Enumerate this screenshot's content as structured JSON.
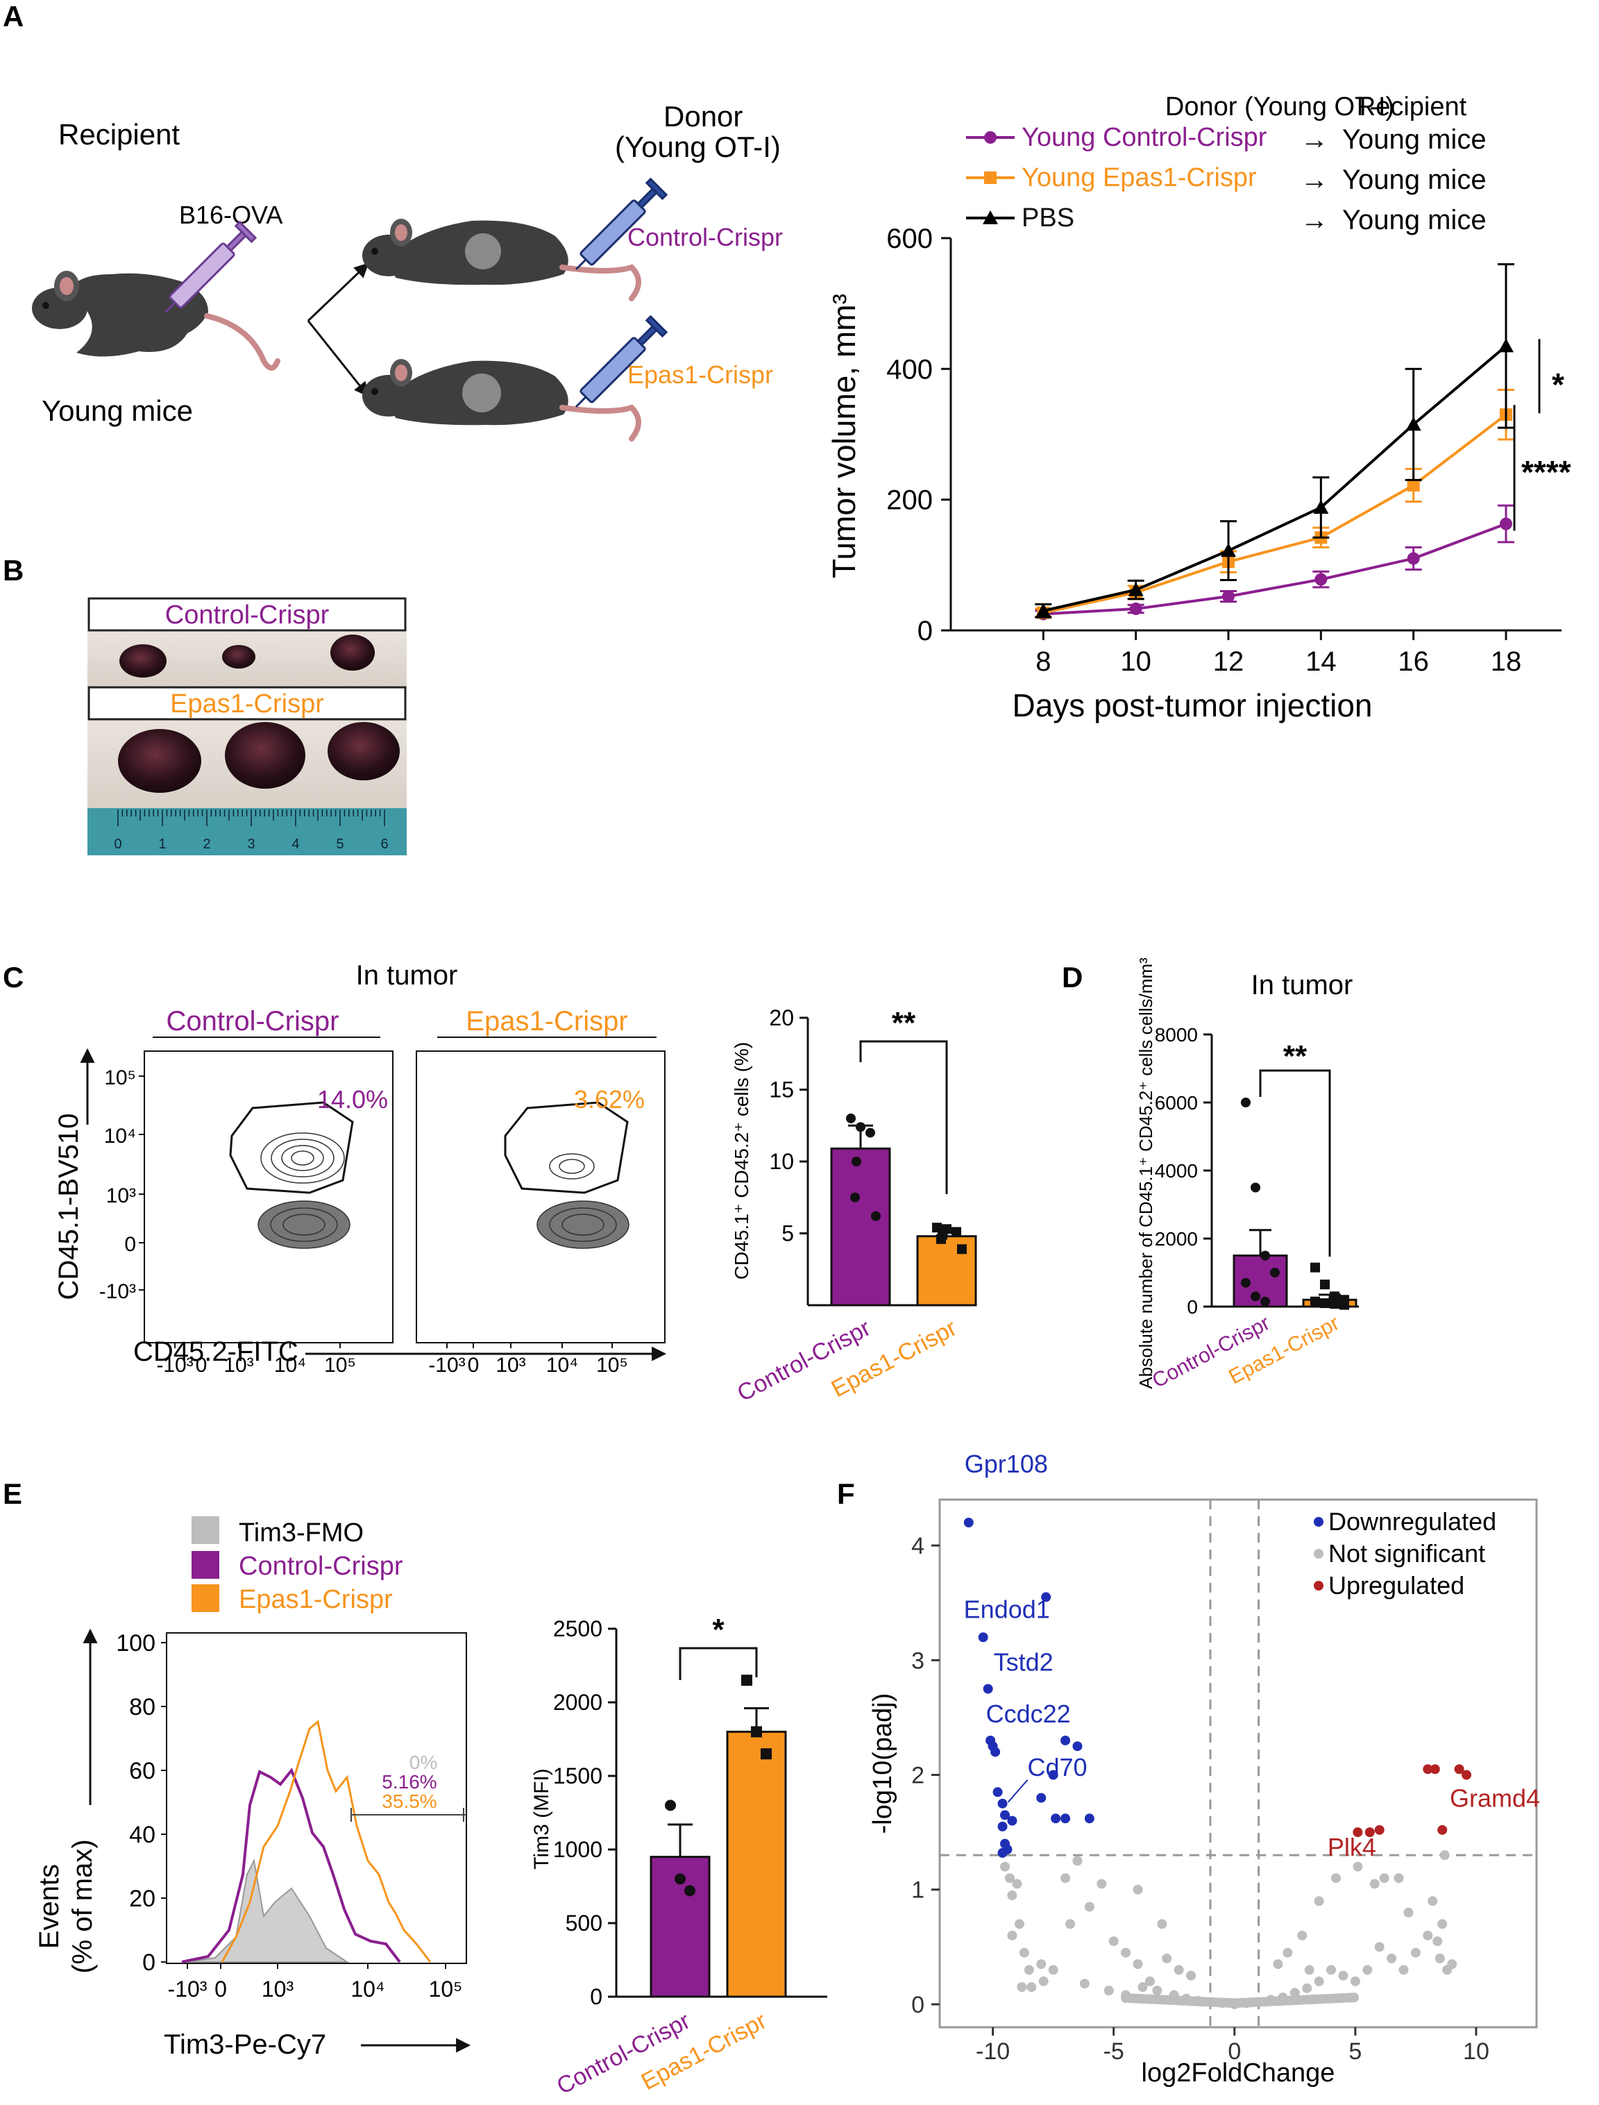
{
  "colors": {
    "control": "#8B1F8F",
    "epas1": "#F7941D",
    "pbs": "#000000",
    "fmo": "#BDBDBD",
    "down": "#1F2FB5",
    "up": "#B22222",
    "ns": "#BDBDBD"
  },
  "panels": {
    "A": "A",
    "B": "B",
    "C": "C",
    "D": "D",
    "E": "E",
    "F": "F"
  },
  "schematic": {
    "recipient": "Recipient",
    "young_mice": "Young mice",
    "tumor_cells": "B16-OVA",
    "donor_line1": "Donor",
    "donor_line2": "(Young OT-I)",
    "control": "Control-Crispr",
    "epas1": "Epas1-Crispr"
  },
  "photo": {
    "control_label": "Control-Crispr",
    "epas1_label": "Epas1-Crispr",
    "ruler_ticks": [
      "0",
      "1",
      "2",
      "3",
      "4",
      "5",
      "6"
    ]
  },
  "flow_c": {
    "title": "In tumor",
    "control": "Control-Crispr",
    "epas1": "Epas1-Crispr",
    "control_pct": "14.0%",
    "epas1_pct": "3.62%",
    "ylabel": "CD45.1-BV510",
    "xlabel": "CD45.2-FITC",
    "y_ticks": [
      "10⁵",
      "10⁴",
      "10³",
      "0",
      "-10³"
    ],
    "x_ticks": [
      "-10³",
      "0",
      "10³",
      "10⁴",
      "10⁵"
    ]
  },
  "flow_e": {
    "legend": [
      "Tim3-FMO",
      "Control-Crispr",
      "Epas1-Crispr"
    ],
    "ylabel1": "Events",
    "ylabel2": "(% of max)",
    "xlabel": "Tim3-Pe-Cy7",
    "gate_pcts": [
      "0%",
      "5.16%",
      "35.5%"
    ],
    "y_ticks": [
      "100",
      "80",
      "60",
      "40",
      "20",
      "0"
    ],
    "x_ticks": [
      "-10³",
      "0",
      "10³",
      "10⁴",
      "10⁵"
    ]
  },
  "chart_data": [
    {
      "panel": "A",
      "type": "line",
      "title": "",
      "xlabel": "Days post-tumor injection",
      "ylabel": "Tumor volume, mm³",
      "x": [
        8,
        10,
        12,
        14,
        16,
        18
      ],
      "xlim": [
        6,
        19.2
      ],
      "ylim": [
        0,
        600
      ],
      "yticks": [
        0,
        200,
        400,
        600
      ],
      "legend_header": [
        "Donor (Young OT-I)",
        "Recipient"
      ],
      "series": [
        {
          "name": "Young Control-Crispr",
          "recipient": "Young mice",
          "marker": "circle",
          "color": "#8B1F8F",
          "values": [
            25,
            33,
            52,
            78,
            110,
            163
          ],
          "err": [
            5,
            6,
            8,
            12,
            17,
            28
          ]
        },
        {
          "name": "Young Epas1-Crispr",
          "recipient": "Young mice",
          "marker": "square",
          "color": "#F7941D",
          "values": [
            27,
            58,
            105,
            142,
            222,
            330
          ],
          "err": [
            6,
            10,
            16,
            15,
            25,
            38
          ]
        },
        {
          "name": "PBS",
          "recipient": "Young mice",
          "marker": "triangle",
          "color": "#000000",
          "values": [
            30,
            62,
            122,
            188,
            315,
            435
          ],
          "err": [
            10,
            14,
            45,
            46,
            85,
            125
          ]
        }
      ],
      "significance": [
        {
          "label": "*",
          "from": "PBS",
          "to": "Young Epas1-Crispr"
        },
        {
          "label": "****",
          "from": "Young Epas1-Crispr",
          "to": "Young Control-Crispr"
        }
      ]
    },
    {
      "panel": "C",
      "type": "bar",
      "ylabel": "CD45.1⁺ CD45.2⁺ cells (%)",
      "categories": [
        "Control-Crispr",
        "Epas1-Crispr"
      ],
      "values": [
        10.9,
        4.8
      ],
      "err": [
        1.6,
        0.4
      ],
      "ylim": [
        0,
        20
      ],
      "yticks": [
        5,
        10,
        15,
        20
      ],
      "points": [
        [
          13,
          12.4,
          12.0,
          10.0,
          7.5,
          6.2
        ],
        [
          5.4,
          5.3,
          5.1,
          4.9,
          4.6,
          3.9
        ]
      ],
      "significance": "**"
    },
    {
      "panel": "D",
      "type": "bar",
      "title": "In tumor",
      "ylabel": "Absolute number of CD45.1⁺ CD45.2⁺ cells cells/mm³",
      "categories": [
        "Control-Crispr",
        "Epas1-Crispr"
      ],
      "values": [
        1500,
        200
      ],
      "err": [
        750,
        150
      ],
      "ylim": [
        0,
        8000
      ],
      "yticks": [
        0,
        2000,
        4000,
        6000,
        8000
      ],
      "points": [
        [
          6000,
          3500,
          1500,
          1000,
          700,
          300,
          150
        ],
        [
          1150,
          650,
          300,
          200,
          150,
          100,
          80,
          50
        ]
      ],
      "significance": "**"
    },
    {
      "panel": "E",
      "type": "bar",
      "ylabel": "Tim3 (MFI)",
      "categories": [
        "Control-Crispr",
        "Epas1-Crispr"
      ],
      "values": [
        950,
        1800
      ],
      "err": [
        220,
        160
      ],
      "ylim": [
        0,
        2500
      ],
      "yticks": [
        0,
        500,
        1000,
        1500,
        2000,
        2500
      ],
      "points": [
        [
          1300,
          800,
          720
        ],
        [
          2150,
          1800,
          1650
        ]
      ],
      "significance": "*"
    },
    {
      "panel": "F",
      "type": "scatter",
      "xlabel": "log2FoldChange",
      "ylabel": "-log10(padj)",
      "xlim": [
        -12.2,
        12.5
      ],
      "ylim": [
        -0.2,
        4.4
      ],
      "xticks": [
        -10,
        -5,
        0,
        5,
        10
      ],
      "yticks": [
        0,
        1,
        2,
        3,
        4
      ],
      "thresholds": {
        "x": [
          -1,
          1
        ],
        "y": 1.3
      },
      "legend": [
        "Downregulated",
        "Not significant",
        "Upregulated"
      ],
      "labels": [
        {
          "text": "Gpr108",
          "x": -11,
          "y": 4.2,
          "group": "down"
        },
        {
          "text": "Endod1",
          "x": -10.4,
          "y": 3.2,
          "group": "down"
        },
        {
          "text": "Tstd2",
          "x": -10.2,
          "y": 2.75,
          "group": "down"
        },
        {
          "text": "Ccdc22",
          "x": -10.0,
          "y": 2.25,
          "group": "down"
        },
        {
          "text": "Cd70",
          "x": -9.6,
          "y": 1.75,
          "group": "down"
        },
        {
          "text": "Gramd4",
          "x": 9.6,
          "y": 2.0,
          "group": "up"
        },
        {
          "text": "Plk4",
          "x": 5.0,
          "y": 1.5,
          "group": "up"
        }
      ],
      "down": [
        [
          -11,
          4.2
        ],
        [
          -7.8,
          3.55
        ],
        [
          -10.4,
          3.2
        ],
        [
          -10.2,
          2.75
        ],
        [
          -10.1,
          2.3
        ],
        [
          -10.0,
          2.25
        ],
        [
          -9.9,
          2.2
        ],
        [
          -7,
          2.3
        ],
        [
          -6.5,
          2.25
        ],
        [
          -7.5,
          2.0
        ],
        [
          -9.8,
          1.85
        ],
        [
          -8.0,
          1.8
        ],
        [
          -9.6,
          1.75
        ],
        [
          -9.5,
          1.65
        ],
        [
          -9.2,
          1.6
        ],
        [
          -9.6,
          1.55
        ],
        [
          -7.4,
          1.62
        ],
        [
          -7.0,
          1.62
        ],
        [
          -6,
          1.62
        ],
        [
          -9.5,
          1.4
        ],
        [
          -9.4,
          1.35
        ],
        [
          -9.6,
          1.32
        ]
      ],
      "up": [
        [
          8.0,
          2.05
        ],
        [
          8.3,
          2.05
        ],
        [
          9.3,
          2.05
        ],
        [
          9.6,
          2.0
        ],
        [
          5.1,
          1.5
        ],
        [
          5.6,
          1.5
        ],
        [
          6.0,
          1.52
        ],
        [
          8.6,
          1.52
        ]
      ],
      "ns": [
        [
          -9.5,
          1.2
        ],
        [
          -9.3,
          1.1
        ],
        [
          -9.0,
          1.05
        ],
        [
          -9.2,
          0.95
        ],
        [
          -8.9,
          0.7
        ],
        [
          -8.7,
          0.45
        ],
        [
          -8.5,
          0.3
        ],
        [
          -8.0,
          0.35
        ],
        [
          -7.5,
          0.3
        ],
        [
          -7,
          1.1
        ],
        [
          -6.5,
          1.25
        ],
        [
          -5.5,
          1.05
        ],
        [
          -6,
          0.85
        ],
        [
          -5,
          0.55
        ],
        [
          -4.5,
          0.45
        ],
        [
          -4,
          0.35
        ],
        [
          -3.5,
          0.2
        ],
        [
          -7.9,
          0.2
        ],
        [
          -8.8,
          0.15
        ],
        [
          -6.2,
          0.18
        ],
        [
          -5.2,
          0.12
        ],
        [
          -4.5,
          0.08
        ],
        [
          -3.8,
          0.15
        ],
        [
          -3.2,
          0.12
        ],
        [
          -2.5,
          0.08
        ],
        [
          -2,
          0.05
        ],
        [
          -1.5,
          0.03
        ],
        [
          -1,
          0.02
        ],
        [
          -0.5,
          0.01
        ],
        [
          0,
          0.0
        ],
        [
          0.5,
          0.01
        ],
        [
          1,
          0.02
        ],
        [
          1.5,
          0.04
        ],
        [
          2,
          0.06
        ],
        [
          2.5,
          0.1
        ],
        [
          3,
          0.14
        ],
        [
          3.5,
          0.2
        ],
        [
          4,
          0.3
        ],
        [
          4.5,
          0.25
        ],
        [
          5,
          0.2
        ],
        [
          5.5,
          0.3
        ],
        [
          6,
          0.5
        ],
        [
          6.5,
          0.4
        ],
        [
          7,
          0.3
        ],
        [
          7.5,
          0.45
        ],
        [
          8,
          0.6
        ],
        [
          8.5,
          0.4
        ],
        [
          8.8,
          0.3
        ],
        [
          9,
          0.35
        ],
        [
          8.4,
          0.55
        ],
        [
          1.8,
          0.35
        ],
        [
          2.2,
          0.45
        ],
        [
          3.5,
          0.9
        ],
        [
          4.2,
          1.1
        ],
        [
          5.1,
          1.2
        ],
        [
          5.8,
          1.05
        ],
        [
          6.2,
          1.1
        ],
        [
          6.8,
          1.1
        ],
        [
          8.2,
          0.9
        ],
        [
          8.6,
          0.7
        ],
        [
          -6.8,
          0.7
        ],
        [
          -3,
          0.7
        ],
        [
          -4,
          1.0
        ],
        [
          -2.3,
          0.3
        ],
        [
          -1.8,
          0.25
        ],
        [
          -2.8,
          0.4
        ],
        [
          -9.2,
          0.6
        ],
        [
          -8.4,
          0.15
        ],
        [
          2.8,
          0.6
        ],
        [
          3.1,
          0.3
        ],
        [
          7.2,
          0.8
        ],
        [
          8.7,
          1.3
        ]
      ]
    }
  ]
}
